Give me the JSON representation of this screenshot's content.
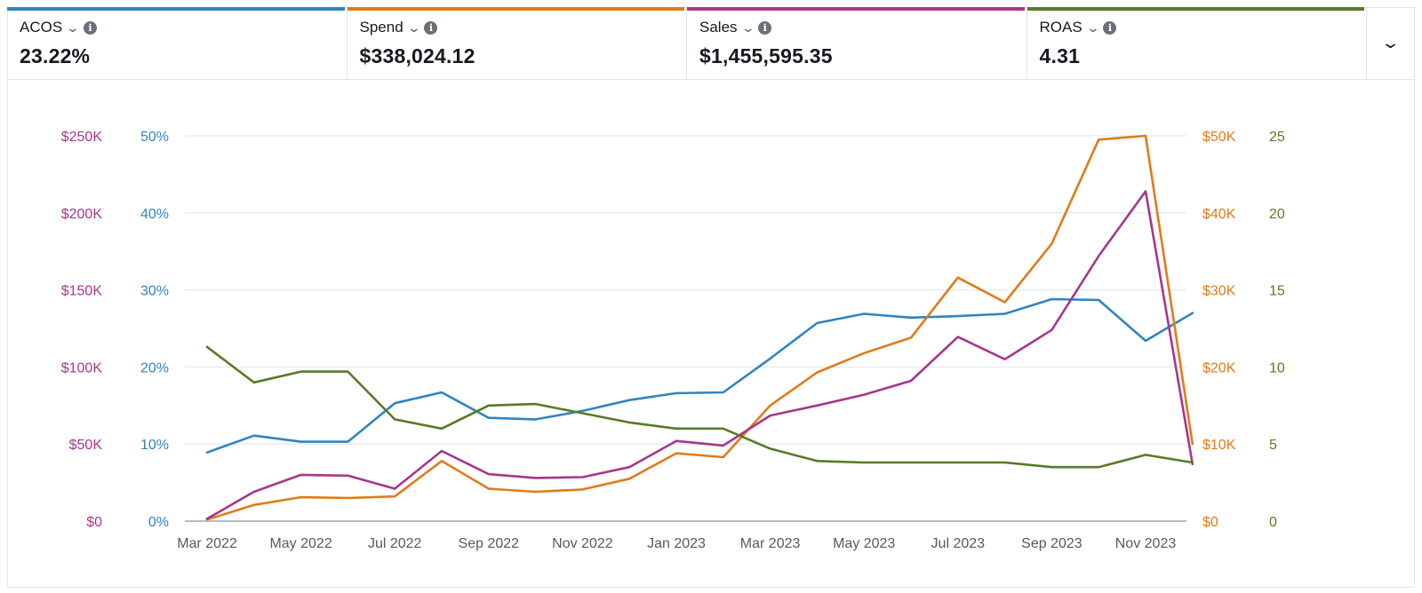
{
  "metrics": [
    {
      "label": "ACOS",
      "value": "23.22%",
      "color": "#3184c2"
    },
    {
      "label": "Spend",
      "value": "$338,024.12",
      "color": "#e07b1a"
    },
    {
      "label": "Sales",
      "value": "$1,455,595.35",
      "color": "#a6378c"
    },
    {
      "label": "ROAS",
      "value": "4.31",
      "color": "#5a7a27"
    }
  ],
  "info_symbol": "i",
  "chart_data": {
    "type": "line",
    "x": [
      "Mar 2022",
      "Apr 2022",
      "May 2022",
      "Jun 2022",
      "Jul 2022",
      "Aug 2022",
      "Sep 2022",
      "Oct 2022",
      "Nov 2022",
      "Dec 2022",
      "Jan 2023",
      "Feb 2023",
      "Mar 2023",
      "Apr 2023",
      "May 2023",
      "Jun 2023",
      "Jul 2023",
      "Aug 2023",
      "Sep 2023",
      "Oct 2023",
      "Nov 2023",
      "Dec 2023"
    ],
    "x_tick_labels": [
      "Mar 2022",
      "May 2022",
      "Jul 2022",
      "Sep 2022",
      "Nov 2022",
      "Jan 2023",
      "Mar 2023",
      "May 2023",
      "Jul 2023",
      "Sep 2023",
      "Nov 2023"
    ],
    "axes": {
      "sales": {
        "side": "left-outer",
        "ticks": [
          "$250K",
          "$200K",
          "$150K",
          "$100K",
          "$50K",
          "$0"
        ],
        "range": [
          0,
          250000
        ],
        "color": "#a6378c"
      },
      "acos": {
        "side": "left-inner",
        "ticks": [
          "50%",
          "40%",
          "30%",
          "20%",
          "10%",
          "0%"
        ],
        "range": [
          0,
          50
        ],
        "color": "#3184c2"
      },
      "spend": {
        "side": "right-inner",
        "ticks": [
          "$50K",
          "$40K",
          "$30K",
          "$20K",
          "$10K",
          "$0"
        ],
        "range": [
          0,
          50000
        ],
        "color": "#e07b1a"
      },
      "roas": {
        "side": "right-outer",
        "ticks": [
          "25",
          "20",
          "15",
          "10",
          "5",
          "0"
        ],
        "range": [
          0,
          25
        ],
        "color": "#5a7a27"
      }
    },
    "series": [
      {
        "name": "ACOS",
        "axis": "acos",
        "color": "#3184c2",
        "values": [
          8.9,
          11.1,
          10.3,
          10.3,
          15.3,
          16.7,
          13.4,
          13.2,
          14.3,
          15.7,
          16.6,
          16.7,
          21.1,
          25.7,
          26.9,
          26.4,
          26.6,
          26.9,
          28.8,
          28.7,
          23.4,
          27.0
        ]
      },
      {
        "name": "Spend",
        "axis": "spend",
        "color": "#e07b1a",
        "values": [
          200,
          2100,
          3100,
          3000,
          3200,
          7800,
          4200,
          3800,
          4100,
          5500,
          8800,
          8300,
          15000,
          19300,
          21800,
          23800,
          31600,
          28400,
          36000,
          49500,
          50000,
          10000
        ]
      },
      {
        "name": "Sales",
        "axis": "sales",
        "color": "#a6378c",
        "values": [
          1500,
          19000,
          30000,
          29500,
          21000,
          45500,
          30500,
          28000,
          28500,
          35000,
          52000,
          49000,
          68500,
          75000,
          82000,
          91000,
          119500,
          105000,
          124000,
          172000,
          214000,
          37000
        ]
      },
      {
        "name": "ROAS",
        "axis": "roas",
        "color": "#5a7a27",
        "values": [
          11.3,
          9.0,
          9.7,
          9.7,
          6.6,
          6.0,
          7.5,
          7.6,
          7.0,
          6.4,
          6.0,
          6.0,
          4.7,
          3.9,
          3.8,
          3.8,
          3.8,
          3.8,
          3.5,
          3.5,
          4.3,
          3.8
        ]
      }
    ],
    "grid": true
  }
}
